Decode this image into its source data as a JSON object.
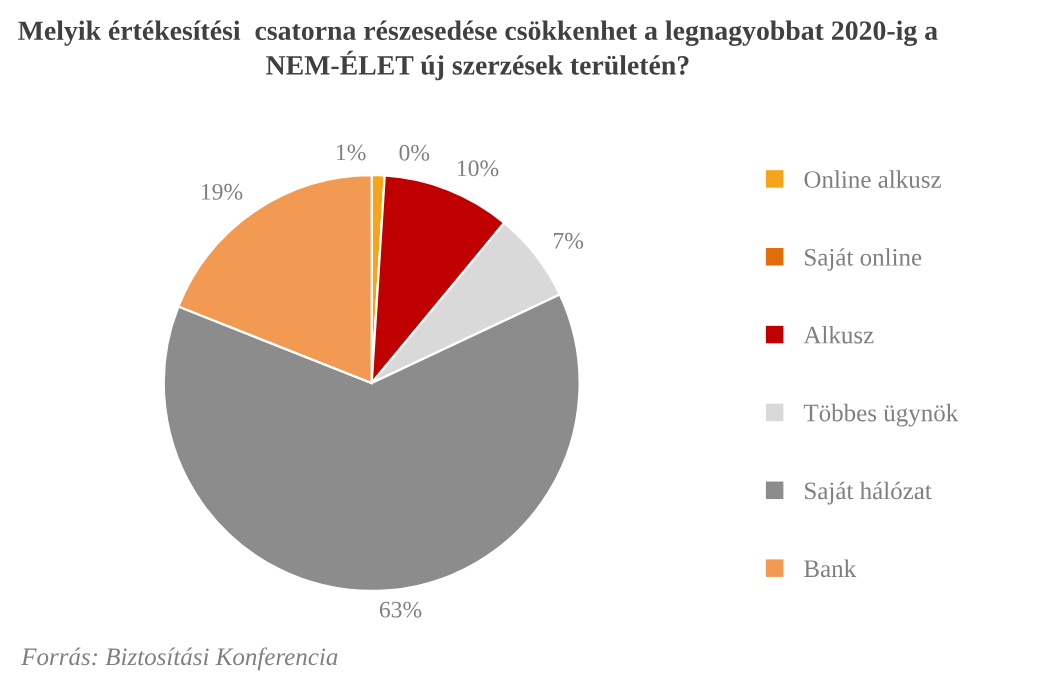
{
  "chart_data": {
    "type": "pie",
    "title": "Melyik értékesítési  csatorna részesedése csökkenhet a legnagyobbat 2020-ig a NEM-ÉLET új szerzések területén?",
    "categories": [
      "Online alkusz",
      "Saját online",
      "Alkusz",
      "Többes ügynök",
      "Saját hálózat",
      "Bank"
    ],
    "values": [
      1,
      0,
      10,
      7,
      63,
      19
    ],
    "colors": [
      "#f5a41c",
      "#e46c0a",
      "#c00000",
      "#d9d9d9",
      "#8c8c8c",
      "#f29a52"
    ],
    "value_labels": [
      "1%",
      "0%",
      "10%",
      "7%",
      "63%",
      "19%"
    ],
    "legend": "right",
    "annotations": [
      "Forrás: Biztosítási Konferencia"
    ]
  }
}
